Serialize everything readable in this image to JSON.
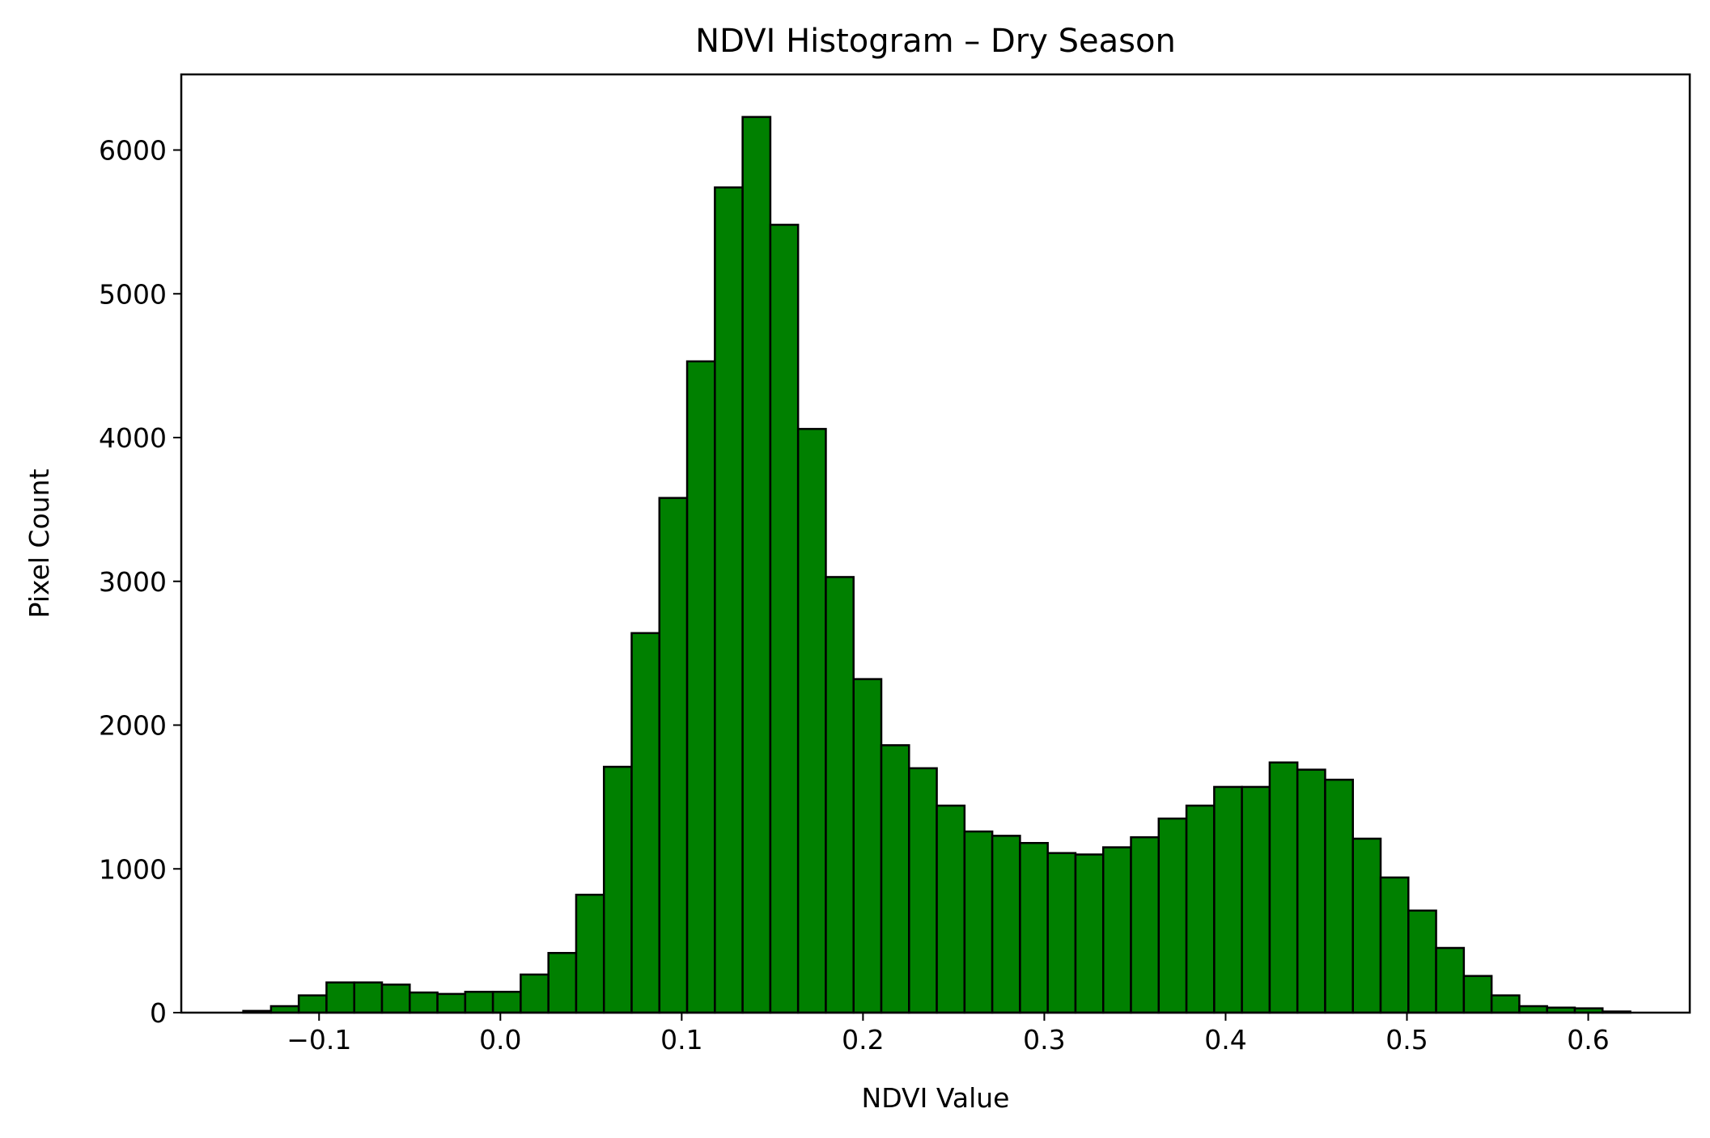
{
  "chart_data": {
    "type": "bar",
    "title": "NDVI Histogram – Dry Season",
    "xlabel": "NDVI Value",
    "ylabel": "Pixel Count",
    "xlim": [
      -0.176,
      0.656
    ],
    "ylim": [
      0,
      6526
    ],
    "bin_width": 0.0153,
    "bar_color": "#008000",
    "edge_color": "#000000",
    "grid": false,
    "x_ticks": [
      {
        "value": -0.1,
        "label": "−0.1"
      },
      {
        "value": 0.0,
        "label": "0.0"
      },
      {
        "value": 0.1,
        "label": "0.1"
      },
      {
        "value": 0.2,
        "label": "0.2"
      },
      {
        "value": 0.3,
        "label": "0.3"
      },
      {
        "value": 0.4,
        "label": "0.4"
      },
      {
        "value": 0.5,
        "label": "0.5"
      },
      {
        "value": 0.6,
        "label": "0.6"
      }
    ],
    "y_ticks": [
      {
        "value": 0,
        "label": "0"
      },
      {
        "value": 1000,
        "label": "1000"
      },
      {
        "value": 2000,
        "label": "2000"
      },
      {
        "value": 3000,
        "label": "3000"
      },
      {
        "value": 4000,
        "label": "4000"
      },
      {
        "value": 5000,
        "label": "5000"
      },
      {
        "value": 6000,
        "label": "6000"
      }
    ],
    "bins": [
      {
        "x": -0.1418,
        "count": 12
      },
      {
        "x": -0.1265,
        "count": 45
      },
      {
        "x": -0.1112,
        "count": 120
      },
      {
        "x": -0.0959,
        "count": 210
      },
      {
        "x": -0.0806,
        "count": 210
      },
      {
        "x": -0.0653,
        "count": 195
      },
      {
        "x": -0.05,
        "count": 140
      },
      {
        "x": -0.0347,
        "count": 130
      },
      {
        "x": -0.0194,
        "count": 145
      },
      {
        "x": -0.0041,
        "count": 145
      },
      {
        "x": 0.0112,
        "count": 265
      },
      {
        "x": 0.0265,
        "count": 415
      },
      {
        "x": 0.0418,
        "count": 820
      },
      {
        "x": 0.0571,
        "count": 1710
      },
      {
        "x": 0.0724,
        "count": 2640
      },
      {
        "x": 0.0877,
        "count": 3580
      },
      {
        "x": 0.103,
        "count": 4530
      },
      {
        "x": 0.1183,
        "count": 5740
      },
      {
        "x": 0.1336,
        "count": 6230
      },
      {
        "x": 0.1489,
        "count": 5480
      },
      {
        "x": 0.1642,
        "count": 4060
      },
      {
        "x": 0.1795,
        "count": 3030
      },
      {
        "x": 0.1948,
        "count": 2320
      },
      {
        "x": 0.2101,
        "count": 1860
      },
      {
        "x": 0.2254,
        "count": 1700
      },
      {
        "x": 0.2407,
        "count": 1440
      },
      {
        "x": 0.256,
        "count": 1260
      },
      {
        "x": 0.2713,
        "count": 1230
      },
      {
        "x": 0.2866,
        "count": 1180
      },
      {
        "x": 0.3019,
        "count": 1110
      },
      {
        "x": 0.3172,
        "count": 1100
      },
      {
        "x": 0.3325,
        "count": 1150
      },
      {
        "x": 0.3478,
        "count": 1220
      },
      {
        "x": 0.3631,
        "count": 1350
      },
      {
        "x": 0.3784,
        "count": 1440
      },
      {
        "x": 0.3937,
        "count": 1570
      },
      {
        "x": 0.409,
        "count": 1570
      },
      {
        "x": 0.4243,
        "count": 1740
      },
      {
        "x": 0.4396,
        "count": 1690
      },
      {
        "x": 0.4549,
        "count": 1620
      },
      {
        "x": 0.4702,
        "count": 1210
      },
      {
        "x": 0.4855,
        "count": 940
      },
      {
        "x": 0.5008,
        "count": 710
      },
      {
        "x": 0.5161,
        "count": 450
      },
      {
        "x": 0.5314,
        "count": 255
      },
      {
        "x": 0.5467,
        "count": 120
      },
      {
        "x": 0.562,
        "count": 45
      },
      {
        "x": 0.5773,
        "count": 35
      },
      {
        "x": 0.5926,
        "count": 30
      },
      {
        "x": 0.6079,
        "count": 8
      }
    ]
  }
}
